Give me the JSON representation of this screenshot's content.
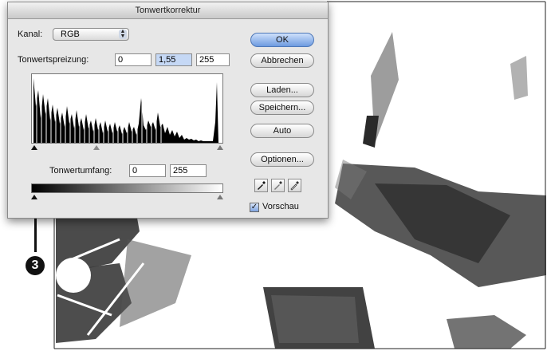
{
  "window": {
    "title": "Tonwertkorrektur"
  },
  "channel": {
    "label": "Kanal:",
    "value": "RGB"
  },
  "input_levels": {
    "label": "Tonwertspreizung:",
    "black": "0",
    "gamma": "1,55",
    "white": "255"
  },
  "output_levels": {
    "label": "Tonwertumfang:",
    "black": "0",
    "white": "255"
  },
  "buttons": {
    "ok": "OK",
    "cancel": "Abbrechen",
    "load": "Laden...",
    "save": "Speichern...",
    "auto": "Auto",
    "options": "Optionen..."
  },
  "eyedroppers": [
    "black-eyedropper-icon",
    "gray-eyedropper-icon",
    "white-eyedropper-icon"
  ],
  "preview": {
    "label": "Vorschau",
    "checked": true
  },
  "callout": {
    "number": "3"
  },
  "colors": {
    "default_button": "#6c9ae0",
    "dialog_bg": "#e7e7e7"
  }
}
